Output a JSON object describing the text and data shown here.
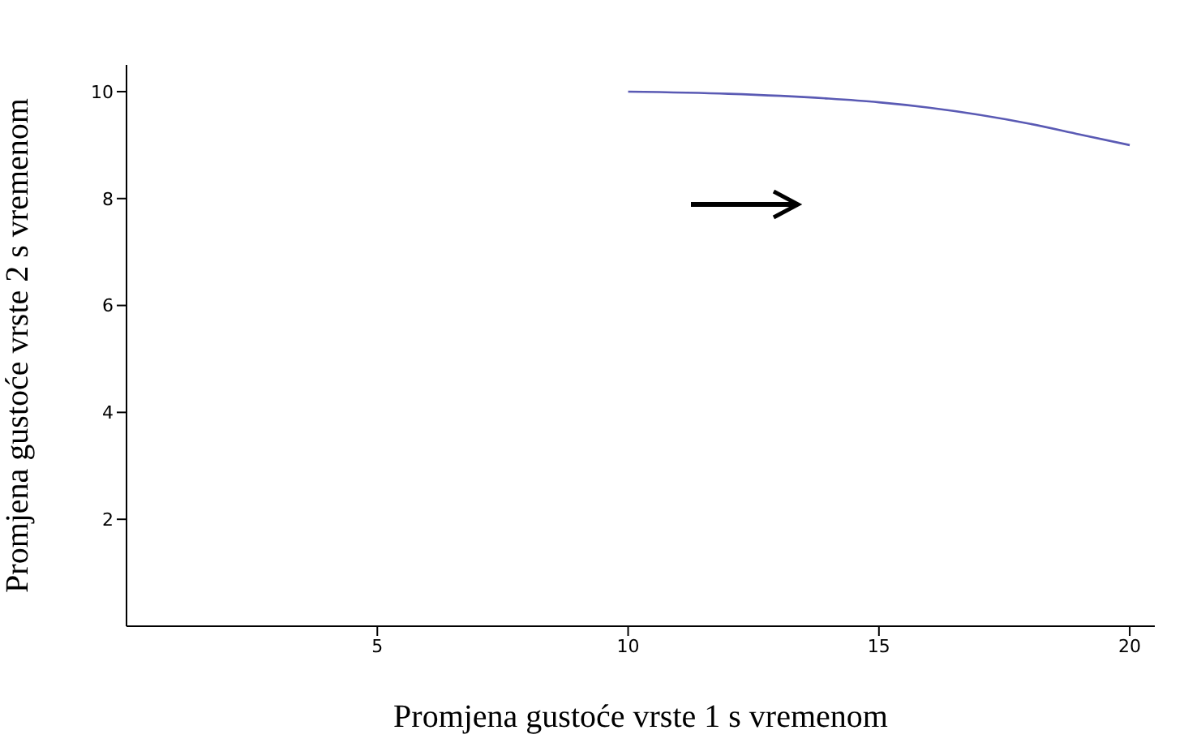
{
  "chart_data": {
    "type": "line",
    "xlabel": "Promjena gustoće vrste 1 s vremenom",
    "ylabel": "Promjena gustoće vrste 2 s vremenom",
    "x": [
      10,
      12,
      14,
      15,
      16,
      18,
      19,
      20
    ],
    "series": [
      {
        "color": "#5a5ab4",
        "values": [
          10,
          9.96,
          9.87,
          9.8,
          9.7,
          9.4,
          9.2,
          9.0
        ]
      }
    ],
    "xlim": [
      0,
      20.5
    ],
    "ylim": [
      0,
      10.5
    ],
    "xticks": [
      5,
      10,
      15,
      20
    ],
    "yticks": [
      2,
      4,
      6,
      8,
      10
    ],
    "marker": "none",
    "line_style": "solid"
  }
}
